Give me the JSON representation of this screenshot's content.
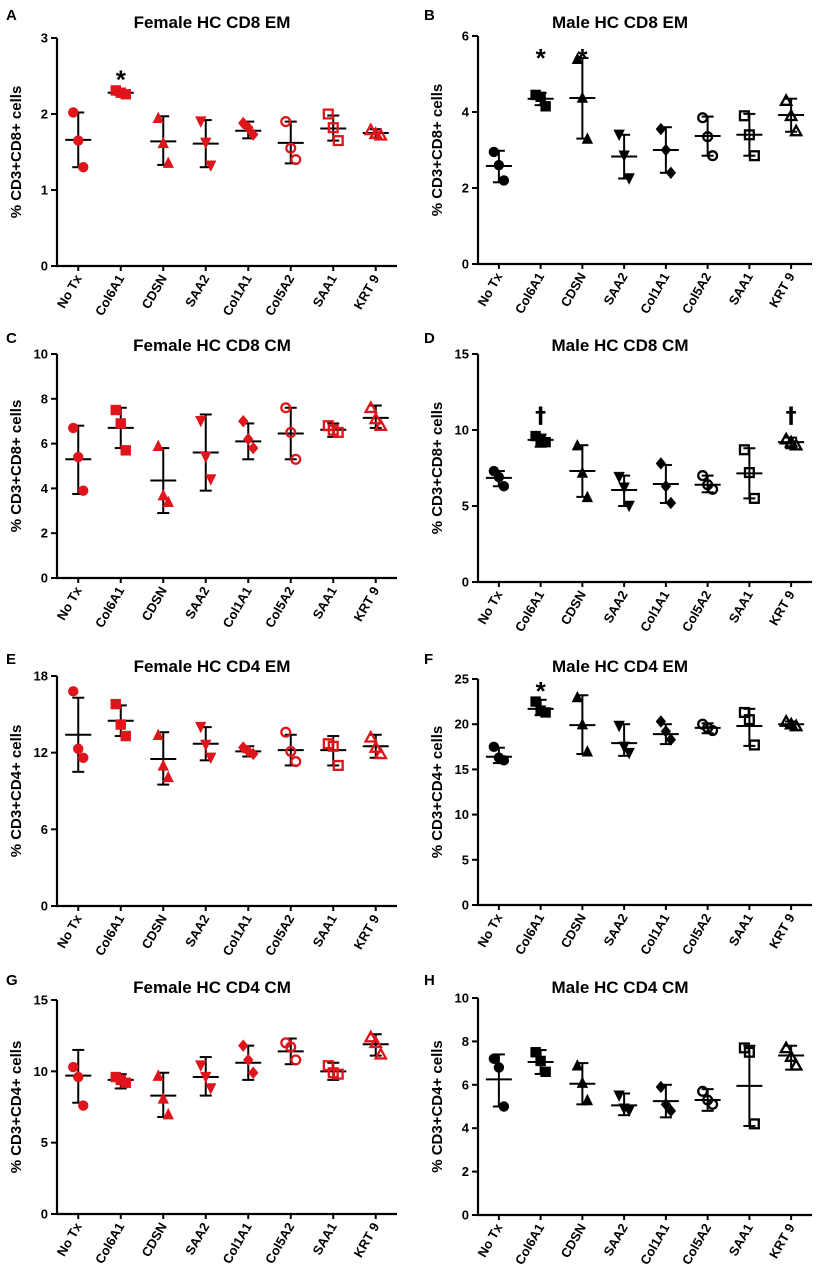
{
  "categories": [
    "No Tx",
    "Col6A1",
    "CDSN",
    "SAA2",
    "Col1A1",
    "Col5A2",
    "SAA1",
    "KRT 9"
  ],
  "colors": {
    "female": "#e0141b",
    "male": "#000000",
    "axis": "#000000"
  },
  "markers": [
    "circle",
    "square",
    "triangle-up",
    "triangle-down",
    "diamond",
    "circle-open",
    "square-open",
    "triangle-open"
  ],
  "chart_data": [
    {
      "panel": "A",
      "type": "scatter",
      "title": "Female HC CD8 EM",
      "ylabel": "% CD3+CD8+ cells",
      "color": "female",
      "ylim": [
        0,
        3
      ],
      "yticks": [
        0,
        1,
        2,
        3
      ],
      "tick_labels": [
        "0",
        "1",
        "2",
        "3"
      ],
      "series": [
        {
          "name": "No Tx",
          "points": [
            2.02,
            1.65,
            1.3
          ],
          "mean": 1.66,
          "sd": [
            1.3,
            2.02
          ]
        },
        {
          "name": "Col6A1",
          "points": [
            2.31,
            2.28,
            2.26
          ],
          "mean": 2.28,
          "sd": [
            2.25,
            2.31
          ]
        },
        {
          "name": "CDSN",
          "points": [
            1.95,
            1.62,
            1.36
          ],
          "mean": 1.64,
          "sd": [
            1.33,
            1.97
          ]
        },
        {
          "name": "SAA2",
          "points": [
            1.9,
            1.62,
            1.32
          ],
          "mean": 1.61,
          "sd": [
            1.3,
            1.92
          ]
        },
        {
          "name": "Col1A1",
          "points": [
            1.88,
            1.82,
            1.73
          ],
          "mean": 1.78,
          "sd": [
            1.68,
            1.9
          ]
        },
        {
          "name": "Col5A2",
          "points": [
            1.9,
            1.55,
            1.4
          ],
          "mean": 1.62,
          "sd": [
            1.35,
            1.9
          ]
        },
        {
          "name": "SAA1",
          "points": [
            2.0,
            1.82,
            1.65
          ],
          "mean": 1.81,
          "sd": [
            1.65,
            1.98
          ]
        },
        {
          "name": "KRT 9",
          "points": [
            1.79,
            1.74,
            1.72
          ],
          "mean": 1.75,
          "sd": [
            1.69,
            1.8
          ]
        }
      ],
      "annotations": [
        {
          "category": "Col6A1",
          "symbol": "*",
          "y": 2.52
        }
      ]
    },
    {
      "panel": "B",
      "type": "scatter",
      "title": "Male HC CD8 EM",
      "ylabel": "% CD3+CD8+ cells",
      "color": "male",
      "ylim": [
        0,
        6
      ],
      "yticks": [
        0,
        2,
        4,
        6
      ],
      "tick_labels": [
        "0",
        "2",
        "4",
        "6"
      ],
      "series": [
        {
          "name": "No Tx",
          "points": [
            2.95,
            2.6,
            2.2
          ],
          "mean": 2.58,
          "sd": [
            2.15,
            2.98
          ]
        },
        {
          "name": "Col6A1",
          "points": [
            4.45,
            4.4,
            4.15
          ],
          "mean": 4.35,
          "sd": [
            4.18,
            4.5
          ]
        },
        {
          "name": "CDSN",
          "points": [
            5.4,
            4.38,
            3.3
          ],
          "mean": 4.37,
          "sd": [
            3.3,
            5.42
          ]
        },
        {
          "name": "SAA2",
          "points": [
            3.4,
            2.85,
            2.25
          ],
          "mean": 2.83,
          "sd": [
            2.25,
            3.4
          ]
        },
        {
          "name": "Col1A1",
          "points": [
            3.55,
            3.0,
            2.4
          ],
          "mean": 3.0,
          "sd": [
            2.4,
            3.6
          ]
        },
        {
          "name": "Col5A2",
          "points": [
            3.85,
            3.35,
            2.85
          ],
          "mean": 3.37,
          "sd": [
            2.85,
            3.88
          ]
        },
        {
          "name": "SAA1",
          "points": [
            3.9,
            3.4,
            2.85
          ],
          "mean": 3.4,
          "sd": [
            2.85,
            3.95
          ]
        },
        {
          "name": "KRT 9",
          "points": [
            4.3,
            3.9,
            3.5
          ],
          "mean": 3.92,
          "sd": [
            3.48,
            4.35
          ]
        }
      ],
      "annotations": [
        {
          "category": "Col6A1",
          "symbol": "*",
          "y": 5.55
        },
        {
          "category": "CDSN",
          "symbol": "*",
          "y": 5.55
        }
      ]
    },
    {
      "panel": "C",
      "type": "scatter",
      "title": "Female HC CD8 CM",
      "ylabel": "% CD3+CD8+ cells",
      "color": "female",
      "ylim": [
        0,
        10
      ],
      "yticks": [
        0,
        2,
        4,
        6,
        8,
        10
      ],
      "tick_labels": [
        "0",
        "2",
        "4",
        "6",
        "8",
        "10"
      ],
      "series": [
        {
          "name": "No Tx",
          "points": [
            6.7,
            5.4,
            3.9
          ],
          "mean": 5.3,
          "sd": [
            3.75,
            6.8
          ]
        },
        {
          "name": "Col6A1",
          "points": [
            7.5,
            6.9,
            5.7
          ],
          "mean": 6.7,
          "sd": [
            5.8,
            7.6
          ]
        },
        {
          "name": "CDSN",
          "points": [
            5.9,
            3.7,
            3.4
          ],
          "mean": 4.35,
          "sd": [
            2.9,
            5.8
          ]
        },
        {
          "name": "SAA2",
          "points": [
            7.0,
            5.4,
            4.4
          ],
          "mean": 5.6,
          "sd": [
            3.9,
            7.3
          ]
        },
        {
          "name": "Col1A1",
          "points": [
            7.0,
            6.2,
            5.8
          ],
          "mean": 6.1,
          "sd": [
            5.3,
            6.9
          ]
        },
        {
          "name": "Col5A2",
          "points": [
            7.6,
            6.5,
            5.3
          ],
          "mean": 6.45,
          "sd": [
            5.3,
            7.6
          ]
        },
        {
          "name": "SAA1",
          "points": [
            6.8,
            6.6,
            6.5
          ],
          "mean": 6.62,
          "sd": [
            6.3,
            6.9
          ]
        },
        {
          "name": "KRT 9",
          "points": [
            7.6,
            7.1,
            6.8
          ],
          "mean": 7.15,
          "sd": [
            6.7,
            7.7
          ]
        }
      ],
      "annotations": []
    },
    {
      "panel": "D",
      "type": "scatter",
      "title": "Male HC CD8 CM",
      "ylabel": "% CD3+CD8+ cells",
      "color": "male",
      "ylim": [
        0,
        15
      ],
      "yticks": [
        0,
        5,
        10,
        15
      ],
      "tick_labels": [
        "0",
        "5",
        "10",
        "15"
      ],
      "series": [
        {
          "name": "No Tx",
          "points": [
            7.3,
            6.9,
            6.3
          ],
          "mean": 6.85,
          "sd": [
            6.3,
            7.3
          ]
        },
        {
          "name": "Col6A1",
          "points": [
            9.6,
            9.3,
            9.2
          ],
          "mean": 9.35,
          "sd": [
            8.9,
            9.7
          ]
        },
        {
          "name": "CDSN",
          "points": [
            9.0,
            7.2,
            5.6
          ],
          "mean": 7.3,
          "sd": [
            5.6,
            9.0
          ]
        },
        {
          "name": "SAA2",
          "points": [
            6.9,
            6.2,
            5.0
          ],
          "mean": 6.05,
          "sd": [
            5.0,
            7.0
          ]
        },
        {
          "name": "Col1A1",
          "points": [
            7.8,
            6.3,
            5.2
          ],
          "mean": 6.45,
          "sd": [
            5.2,
            7.7
          ]
        },
        {
          "name": "Col5A2",
          "points": [
            7.0,
            6.4,
            6.1
          ],
          "mean": 6.4,
          "sd": [
            5.9,
            7.0
          ]
        },
        {
          "name": "SAA1",
          "points": [
            8.7,
            7.2,
            5.5
          ],
          "mean": 7.15,
          "sd": [
            5.5,
            8.8
          ]
        },
        {
          "name": "KRT 9",
          "points": [
            9.4,
            9.2,
            9.0
          ],
          "mean": 9.2,
          "sd": [
            8.8,
            9.5
          ]
        }
      ],
      "annotations": [
        {
          "category": "Col6A1",
          "symbol": "†",
          "y": 11.0
        },
        {
          "category": "KRT 9",
          "symbol": "†",
          "y": 11.0
        }
      ]
    },
    {
      "panel": "E",
      "type": "scatter",
      "title": "Female HC CD4 EM",
      "ylabel": "% CD3+CD4+ cells",
      "color": "female",
      "ylim": [
        0,
        18
      ],
      "yticks": [
        0,
        6,
        12,
        18
      ],
      "tick_labels": [
        "0",
        "6",
        "12",
        "18"
      ],
      "series": [
        {
          "name": "No Tx",
          "points": [
            16.8,
            12.3,
            11.6
          ],
          "mean": 13.4,
          "sd": [
            10.5,
            16.3
          ]
        },
        {
          "name": "Col6A1",
          "points": [
            15.8,
            14.2,
            13.3
          ],
          "mean": 14.5,
          "sd": [
            13.3,
            15.7
          ]
        },
        {
          "name": "CDSN",
          "points": [
            13.4,
            11.0,
            10.1
          ],
          "mean": 11.5,
          "sd": [
            9.5,
            13.6
          ]
        },
        {
          "name": "SAA2",
          "points": [
            14.0,
            12.6,
            11.6
          ],
          "mean": 12.7,
          "sd": [
            11.4,
            14.0
          ]
        },
        {
          "name": "Col1A1",
          "points": [
            12.4,
            12.1,
            11.9
          ],
          "mean": 12.1,
          "sd": [
            11.7,
            12.5
          ]
        },
        {
          "name": "Col5A2",
          "points": [
            13.6,
            12.1,
            11.3
          ],
          "mean": 12.2,
          "sd": [
            11.0,
            13.4
          ]
        },
        {
          "name": "SAA1",
          "points": [
            12.7,
            12.5,
            11.0
          ],
          "mean": 12.2,
          "sd": [
            11.0,
            13.3
          ]
        },
        {
          "name": "KRT 9",
          "points": [
            13.2,
            12.4,
            11.9
          ],
          "mean": 12.5,
          "sd": [
            11.6,
            13.4
          ]
        }
      ],
      "annotations": []
    },
    {
      "panel": "F",
      "type": "scatter",
      "title": "Male HC CD4 EM",
      "ylabel": "% CD3+CD4+ cells",
      "color": "male",
      "ylim": [
        0,
        25
      ],
      "yticks": [
        0,
        5,
        10,
        15,
        20,
        25
      ],
      "tick_labels": [
        "0",
        "5",
        "10",
        "15",
        "20",
        "25"
      ],
      "series": [
        {
          "name": "No Tx",
          "points": [
            17.5,
            16.3,
            16.0
          ],
          "mean": 16.4,
          "sd": [
            15.7,
            17.4
          ]
        },
        {
          "name": "Col6A1",
          "points": [
            22.5,
            21.5,
            21.3
          ],
          "mean": 21.7,
          "sd": [
            21.0,
            22.7
          ]
        },
        {
          "name": "CDSN",
          "points": [
            23.0,
            20.0,
            17.0
          ],
          "mean": 19.9,
          "sd": [
            16.7,
            23.2
          ]
        },
        {
          "name": "SAA2",
          "points": [
            19.8,
            17.5,
            16.8
          ],
          "mean": 17.9,
          "sd": [
            16.5,
            20.0
          ]
        },
        {
          "name": "Col1A1",
          "points": [
            20.3,
            19.2,
            18.3
          ],
          "mean": 18.9,
          "sd": [
            17.8,
            20.0
          ]
        },
        {
          "name": "Col5A2",
          "points": [
            20.0,
            19.6,
            19.3
          ],
          "mean": 19.6,
          "sd": [
            19.0,
            20.1
          ]
        },
        {
          "name": "SAA1",
          "points": [
            21.3,
            20.5,
            17.7
          ],
          "mean": 19.8,
          "sd": [
            17.6,
            21.7
          ]
        },
        {
          "name": "KRT 9",
          "points": [
            20.3,
            20.0,
            19.8
          ],
          "mean": 20.0,
          "sd": [
            19.6,
            20.3
          ]
        }
      ],
      "annotations": [
        {
          "category": "Col6A1",
          "symbol": "*",
          "y": 24.2
        }
      ]
    },
    {
      "panel": "G",
      "type": "scatter",
      "title": "Female HC CD4 CM",
      "ylabel": "% CD3+CD4+ cells",
      "color": "female",
      "ylim": [
        0,
        15
      ],
      "yticks": [
        0,
        5,
        10,
        15
      ],
      "tick_labels": [
        "0",
        "5",
        "10",
        "15"
      ],
      "series": [
        {
          "name": "No Tx",
          "points": [
            10.3,
            9.6,
            7.6
          ],
          "mean": 9.7,
          "sd": [
            7.8,
            11.5
          ]
        },
        {
          "name": "Col6A1",
          "points": [
            9.6,
            9.4,
            9.2
          ],
          "mean": 9.4,
          "sd": [
            8.8,
            9.8
          ]
        },
        {
          "name": "CDSN",
          "points": [
            9.7,
            8.1,
            7.0
          ],
          "mean": 8.3,
          "sd": [
            6.8,
            9.9
          ]
        },
        {
          "name": "SAA2",
          "points": [
            10.4,
            9.6,
            8.8
          ],
          "mean": 9.6,
          "sd": [
            8.3,
            11.0
          ]
        },
        {
          "name": "Col1A1",
          "points": [
            11.8,
            10.8,
            9.9
          ],
          "mean": 10.6,
          "sd": [
            9.4,
            11.8
          ]
        },
        {
          "name": "Col5A2",
          "points": [
            12.0,
            11.7,
            10.8
          ],
          "mean": 11.4,
          "sd": [
            10.5,
            12.3
          ]
        },
        {
          "name": "SAA1",
          "points": [
            10.4,
            9.9,
            9.8
          ],
          "mean": 10.0,
          "sd": [
            9.4,
            10.6
          ]
        },
        {
          "name": "KRT 9",
          "points": [
            12.4,
            12.0,
            11.2
          ],
          "mean": 11.9,
          "sd": [
            11.1,
            12.6
          ]
        }
      ],
      "annotations": []
    },
    {
      "panel": "H",
      "type": "scatter",
      "title": "Male HC CD4 CM",
      "ylabel": "% CD3+CD4+ cells",
      "color": "male",
      "ylim": [
        0,
        10
      ],
      "yticks": [
        0,
        2,
        4,
        6,
        8,
        10
      ],
      "tick_labels": [
        "0",
        "2",
        "4",
        "6",
        "8",
        "10"
      ],
      "series": [
        {
          "name": "No Tx",
          "points": [
            7.2,
            6.8,
            5.0
          ],
          "mean": 6.25,
          "sd": [
            5.0,
            7.4
          ]
        },
        {
          "name": "Col6A1",
          "points": [
            7.5,
            7.1,
            6.6
          ],
          "mean": 7.05,
          "sd": [
            6.5,
            7.6
          ]
        },
        {
          "name": "CDSN",
          "points": [
            6.9,
            6.1,
            5.3
          ],
          "mean": 6.05,
          "sd": [
            5.1,
            7.0
          ]
        },
        {
          "name": "SAA2",
          "points": [
            5.5,
            4.9,
            4.8
          ],
          "mean": 5.05,
          "sd": [
            4.6,
            5.6
          ]
        },
        {
          "name": "Col1A1",
          "points": [
            5.9,
            5.1,
            4.8
          ],
          "mean": 5.25,
          "sd": [
            4.5,
            6.0
          ]
        },
        {
          "name": "Col5A2",
          "points": [
            5.7,
            5.3,
            5.1
          ],
          "mean": 5.3,
          "sd": [
            4.8,
            5.8
          ]
        },
        {
          "name": "SAA1",
          "points": [
            7.7,
            7.5,
            4.2
          ],
          "mean": 5.95,
          "sd": [
            4.1,
            7.8
          ]
        },
        {
          "name": "KRT 9",
          "points": [
            7.7,
            7.3,
            6.9
          ],
          "mean": 7.35,
          "sd": [
            6.7,
            7.8
          ]
        }
      ],
      "annotations": []
    }
  ]
}
